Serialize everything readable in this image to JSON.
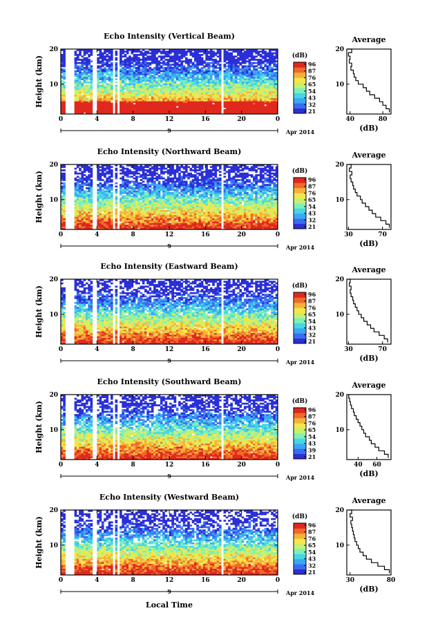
{
  "x_axis_label": "Local Time",
  "colorbar": {
    "unit": "(dB)"
  },
  "avg_title": "Average",
  "avg_unit": "(dB)",
  "date_label": "Apr 2014",
  "date_day": "9",
  "colors": {
    "scale": [
      "#2b2fd6",
      "#3a6cf0",
      "#3aa8f5",
      "#47d6e6",
      "#7ef0b8",
      "#c8f070",
      "#f5e64a",
      "#f5b23a",
      "#f06a2a",
      "#e0281e"
    ]
  },
  "chart_data": [
    {
      "type": "heatmap",
      "title": "Echo Intensity (Vertical Beam)",
      "ylabel": "Height (km)",
      "xlim": [
        0,
        24
      ],
      "ylim": [
        1.5,
        20
      ],
      "x_ticks": [
        "0",
        "4",
        "8",
        "12",
        "16",
        "20",
        "0"
      ],
      "y_ticks": [
        "20",
        "10"
      ],
      "colorbar_ticks": [
        "96",
        "87",
        "76",
        "65",
        "54",
        "43",
        "32",
        "21"
      ],
      "gaps_hours": [
        [
          0.4,
          1.6
        ],
        [
          3.6,
          4.0
        ],
        [
          5.7,
          6.0
        ],
        [
          6.2,
          6.6
        ],
        [
          17.7,
          18.1
        ]
      ],
      "profile": {
        "xlim": [
          36,
          90
        ],
        "x_ticks": [
          "40",
          "80"
        ],
        "x_tick_values": [
          40,
          80
        ],
        "heights": [
          2,
          3,
          4,
          5,
          6,
          7,
          8,
          9,
          10,
          11,
          12,
          13,
          14,
          15,
          16,
          17,
          18,
          19,
          20
        ],
        "values": [
          88,
          84,
          80,
          76,
          70,
          64,
          60,
          56,
          50,
          47,
          45,
          44,
          41,
          42,
          39,
          40,
          38,
          42,
          37
        ]
      }
    },
    {
      "type": "heatmap",
      "title": "Echo Intensity (Northward Beam)",
      "ylabel": "Height (km)",
      "xlim": [
        0,
        24
      ],
      "ylim": [
        1.5,
        20
      ],
      "x_ticks": [
        "0",
        "4",
        "8",
        "12",
        "16",
        "20",
        "0"
      ],
      "y_ticks": [
        "20",
        "10"
      ],
      "colorbar_ticks": [
        "96",
        "87",
        "76",
        "65",
        "54",
        "43",
        "32",
        "21"
      ],
      "gaps_hours": [
        [
          0.4,
          1.6
        ],
        [
          3.6,
          4.0
        ],
        [
          5.7,
          6.0
        ],
        [
          6.2,
          6.6
        ],
        [
          17.7,
          18.1
        ]
      ],
      "profile": {
        "xlim": [
          28,
          80
        ],
        "x_ticks": [
          "30",
          "70"
        ],
        "x_tick_values": [
          30,
          70
        ],
        "heights": [
          2,
          3,
          4,
          5,
          6,
          7,
          8,
          9,
          10,
          11,
          12,
          13,
          14,
          15,
          16,
          17,
          18,
          19,
          20
        ],
        "values": [
          78,
          74,
          68,
          62,
          58,
          54,
          50,
          46,
          44,
          40,
          38,
          36,
          35,
          33,
          32,
          34,
          31,
          33,
          30
        ]
      }
    },
    {
      "type": "heatmap",
      "title": "Echo Intensity (Eastward Beam)",
      "ylabel": "Height (km)",
      "xlim": [
        0,
        24
      ],
      "ylim": [
        1.5,
        20
      ],
      "x_ticks": [
        "0",
        "4",
        "8",
        "12",
        "16",
        "20",
        "0"
      ],
      "y_ticks": [
        "20",
        "10"
      ],
      "colorbar_ticks": [
        "96",
        "87",
        "76",
        "65",
        "54",
        "43",
        "32",
        "21"
      ],
      "gaps_hours": [
        [
          0.4,
          1.6
        ],
        [
          3.6,
          4.0
        ],
        [
          5.7,
          6.0
        ],
        [
          6.2,
          6.6
        ],
        [
          17.7,
          18.1
        ]
      ],
      "profile": {
        "xlim": [
          28,
          80
        ],
        "x_ticks": [
          "30",
          "70"
        ],
        "x_tick_values": [
          30,
          70
        ],
        "heights": [
          2,
          3,
          4,
          5,
          6,
          7,
          8,
          9,
          10,
          11,
          12,
          13,
          14,
          15,
          16,
          17,
          18,
          19,
          20
        ],
        "values": [
          76,
          72,
          66,
          60,
          56,
          52,
          48,
          45,
          42,
          40,
          38,
          36,
          35,
          33,
          32,
          33,
          31,
          32,
          30
        ]
      }
    },
    {
      "type": "heatmap",
      "title": "Echo Intensity (Southward Beam)",
      "ylabel": "Height (km)",
      "xlim": [
        0,
        24
      ],
      "ylim": [
        1.5,
        20
      ],
      "x_ticks": [
        "0",
        "4",
        "8",
        "12",
        "16",
        "20",
        "0"
      ],
      "y_ticks": [
        "20",
        "10"
      ],
      "colorbar_ticks": [
        "96",
        "87",
        "76",
        "65",
        "54",
        "43",
        "39",
        "21"
      ],
      "gaps_hours": [
        [
          0.4,
          1.6
        ],
        [
          3.6,
          4.0
        ],
        [
          5.7,
          6.0
        ],
        [
          6.2,
          6.6
        ],
        [
          17.7,
          18.1
        ]
      ],
      "profile": {
        "xlim": [
          28,
          75
        ],
        "x_ticks": [
          "40",
          "60"
        ],
        "x_tick_values": [
          40,
          60
        ],
        "heights": [
          2,
          3,
          4,
          5,
          6,
          7,
          8,
          9,
          10,
          11,
          12,
          13,
          14,
          15,
          16,
          17,
          18,
          19,
          20
        ],
        "values": [
          72,
          68,
          62,
          58,
          54,
          52,
          48,
          46,
          44,
          42,
          40,
          38,
          36,
          35,
          33,
          32,
          31,
          30,
          31
        ]
      }
    },
    {
      "type": "heatmap",
      "title": "Echo Intensity (Westward Beam)",
      "ylabel": "Height (km)",
      "xlim": [
        0,
        24
      ],
      "ylim": [
        1.5,
        20
      ],
      "x_ticks": [
        "0",
        "4",
        "8",
        "12",
        "16",
        "20",
        "0"
      ],
      "y_ticks": [
        "20",
        "10"
      ],
      "colorbar_ticks": [
        "96",
        "87",
        "76",
        "65",
        "54",
        "43",
        "32",
        "21"
      ],
      "gaps_hours": [
        [
          0.4,
          1.6
        ],
        [
          3.6,
          4.0
        ],
        [
          5.7,
          6.0
        ],
        [
          6.2,
          6.6
        ],
        [
          17.7,
          18.1
        ]
      ],
      "profile": {
        "xlim": [
          26,
          80
        ],
        "x_ticks": [
          "30",
          "80"
        ],
        "x_tick_values": [
          30,
          80
        ],
        "heights": [
          2,
          3,
          4,
          5,
          6,
          7,
          8,
          9,
          10,
          11,
          12,
          13,
          14,
          15,
          16,
          17,
          18,
          19,
          20
        ],
        "values": [
          78,
          72,
          64,
          56,
          50,
          46,
          42,
          40,
          38,
          36,
          35,
          34,
          33,
          32,
          31,
          33,
          30,
          32,
          29
        ]
      }
    }
  ]
}
